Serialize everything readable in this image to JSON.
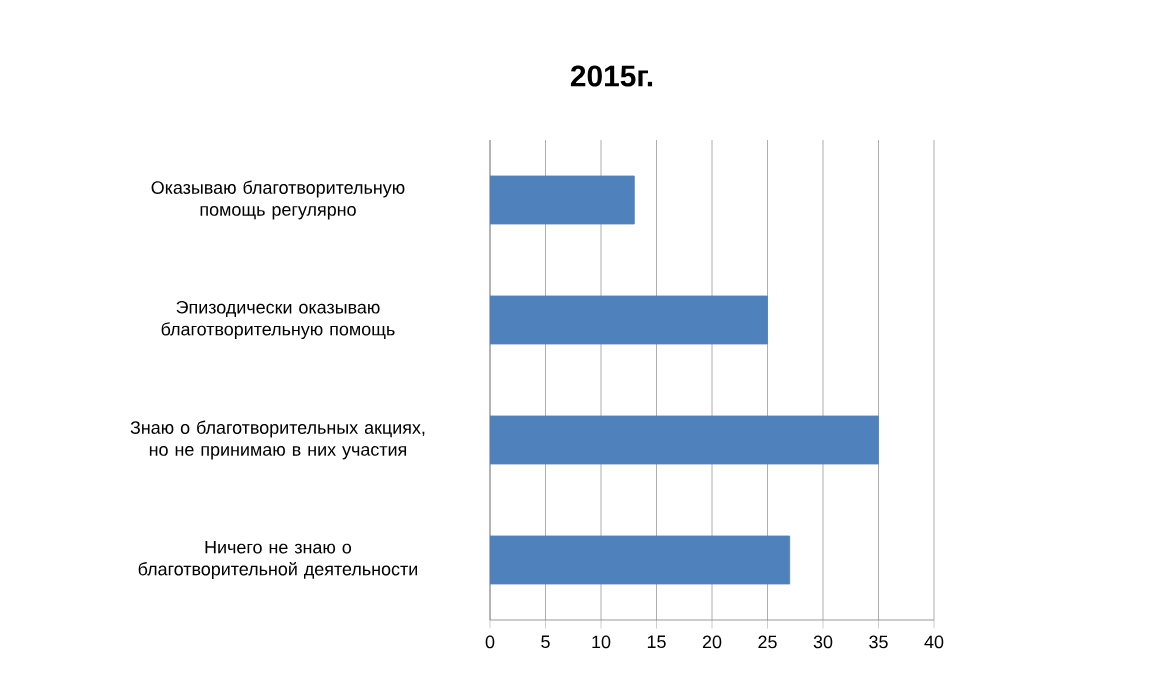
{
  "chart_data": {
    "type": "bar",
    "orientation": "horizontal",
    "title": "2015г.",
    "categories": [
      "Оказываю благотворительную помощь регулярно",
      "Эпизодически оказываю благотворительную помощь",
      "Знаю о благотворительных акциях, но не принимаю в них участия",
      "Ничего не знаю о благотворительной деятельности"
    ],
    "values": [
      13,
      25,
      35,
      27
    ],
    "color": "#4f81bd",
    "xlim": [
      0,
      40
    ],
    "xticks": [
      0,
      5,
      10,
      15,
      20,
      25,
      30,
      35,
      40
    ],
    "grid": "x"
  }
}
